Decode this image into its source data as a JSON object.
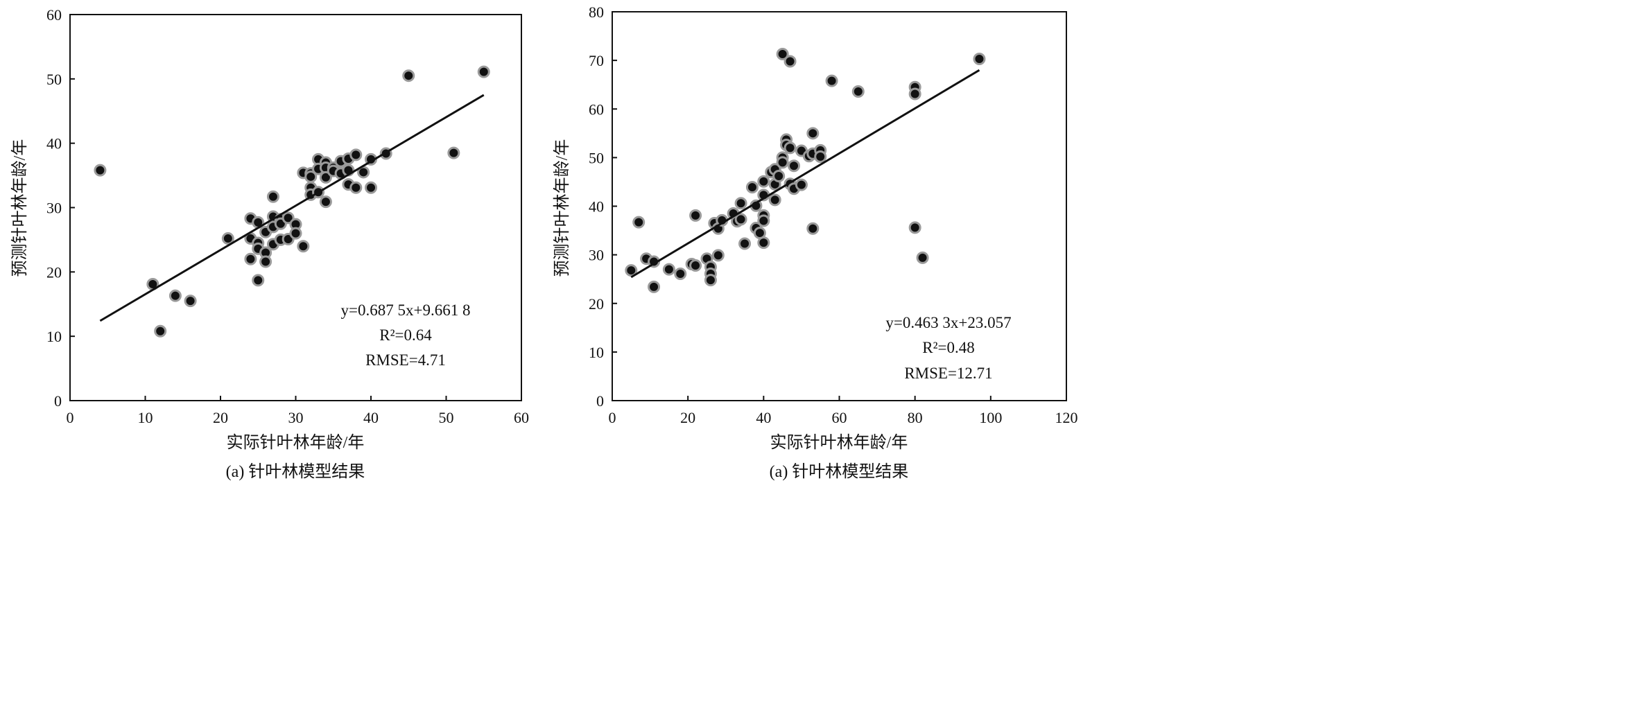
{
  "chart_data": [
    {
      "type": "scatter",
      "xlabel": "实际针叶林年龄/年",
      "ylabel": "预测针叶林年龄/年",
      "caption": "(a) 针叶林模型结果",
      "xlim": [
        0,
        60
      ],
      "ylim": [
        0,
        60
      ],
      "xticks": [
        "0",
        "10",
        "20",
        "30",
        "40",
        "50",
        "60"
      ],
      "yticks": [
        "0",
        "10",
        "20",
        "30",
        "40",
        "50",
        "60"
      ],
      "grid": false,
      "legend": "none",
      "annotation": {
        "equation": "y=0.687 5x+9.661 8",
        "r2": "R²=0.64",
        "rmse": "RMSE=4.71"
      },
      "fit_line": {
        "x": [
          4,
          55
        ],
        "y": [
          12.4,
          47.5
        ]
      },
      "points": [
        [
          4,
          35.8
        ],
        [
          11,
          18.1
        ],
        [
          12,
          10.8
        ],
        [
          14,
          16.3
        ],
        [
          16,
          15.5
        ],
        [
          21,
          25.2
        ],
        [
          24,
          28.3
        ],
        [
          24,
          25.2
        ],
        [
          24,
          22
        ],
        [
          25,
          27.7
        ],
        [
          25,
          24.5
        ],
        [
          25,
          23.6
        ],
        [
          25,
          18.7
        ],
        [
          26,
          26.2
        ],
        [
          26,
          23
        ],
        [
          26,
          21.6
        ],
        [
          27,
          31.7
        ],
        [
          27,
          28.6
        ],
        [
          27,
          27
        ],
        [
          27,
          24.3
        ],
        [
          28,
          28.2
        ],
        [
          28,
          27.5
        ],
        [
          28,
          25
        ],
        [
          29,
          28.4
        ],
        [
          29,
          25.1
        ],
        [
          30,
          27.4
        ],
        [
          30,
          26
        ],
        [
          31,
          35.4
        ],
        [
          31,
          24
        ],
        [
          32,
          35.3
        ],
        [
          32,
          34.8
        ],
        [
          32,
          33.1
        ],
        [
          32,
          32
        ],
        [
          33,
          37.5
        ],
        [
          33,
          36
        ],
        [
          33,
          32.4
        ],
        [
          34,
          37
        ],
        [
          34,
          36.2
        ],
        [
          34,
          34.7
        ],
        [
          34,
          30.9
        ],
        [
          35,
          36.2
        ],
        [
          35,
          35.7
        ],
        [
          36,
          37.2
        ],
        [
          36,
          35.3
        ],
        [
          37,
          37.6
        ],
        [
          37,
          35.8
        ],
        [
          37,
          33.6
        ],
        [
          38,
          38.2
        ],
        [
          38,
          33.1
        ],
        [
          39,
          35.5
        ],
        [
          40,
          37.5
        ],
        [
          40,
          33.1
        ],
        [
          42,
          38.4
        ],
        [
          45,
          50.5
        ],
        [
          51,
          38.5
        ],
        [
          55,
          51.1
        ]
      ]
    },
    {
      "type": "scatter",
      "xlabel": "实际针叶林年龄/年",
      "ylabel": "预测针叶林年龄/年",
      "caption": "(a) 针叶林模型结果",
      "xlim": [
        0,
        120
      ],
      "ylim": [
        0,
        80
      ],
      "xticks": [
        "0",
        "20",
        "40",
        "60",
        "80",
        "100",
        "120"
      ],
      "yticks": [
        "0",
        "10",
        "20",
        "30",
        "40",
        "50",
        "60",
        "70",
        "80"
      ],
      "grid": false,
      "legend": "none",
      "annotation": {
        "equation": "y=0.463 3x+23.057",
        "r2": "R²=0.48",
        "rmse": "RMSE=12.71"
      },
      "fit_line": {
        "x": [
          5,
          97
        ],
        "y": [
          25.4,
          68.0
        ]
      },
      "points": [
        [
          5,
          26.8
        ],
        [
          7,
          36.7
        ],
        [
          9,
          29.2
        ],
        [
          11,
          28.6
        ],
        [
          11,
          23.4
        ],
        [
          15,
          27
        ],
        [
          18,
          26.1
        ],
        [
          21,
          28.1
        ],
        [
          22,
          38.1
        ],
        [
          22,
          27.8
        ],
        [
          25,
          29.2
        ],
        [
          26,
          27.5
        ],
        [
          26,
          26.1
        ],
        [
          26,
          24.8
        ],
        [
          27,
          36.5
        ],
        [
          28,
          35.4
        ],
        [
          28,
          29.9
        ],
        [
          29,
          37.1
        ],
        [
          32,
          38.5
        ],
        [
          33,
          36.9
        ],
        [
          34,
          40.6
        ],
        [
          34,
          37.3
        ],
        [
          35,
          32.3
        ],
        [
          37,
          43.9
        ],
        [
          38,
          40.1
        ],
        [
          38,
          35.5
        ],
        [
          39,
          34.5
        ],
        [
          40,
          45.1
        ],
        [
          40,
          42.3
        ],
        [
          40,
          38.1
        ],
        [
          40,
          37
        ],
        [
          40,
          32.5
        ],
        [
          42,
          47
        ],
        [
          43,
          47.6
        ],
        [
          43,
          44.5
        ],
        [
          43,
          41.3
        ],
        [
          44,
          46.2
        ],
        [
          45,
          71.3
        ],
        [
          45,
          50
        ],
        [
          45,
          49
        ],
        [
          46,
          53.7
        ],
        [
          46,
          52.6
        ],
        [
          47,
          69.8
        ],
        [
          47,
          52
        ],
        [
          47,
          44.6
        ],
        [
          48,
          48.3
        ],
        [
          48,
          43.6
        ],
        [
          50,
          51.4
        ],
        [
          50,
          44.4
        ],
        [
          52,
          50.3
        ],
        [
          53,
          55
        ],
        [
          53,
          50.8
        ],
        [
          53,
          35.4
        ],
        [
          55,
          51.5
        ],
        [
          55,
          50.2
        ],
        [
          58,
          65.8
        ],
        [
          65,
          63.6
        ],
        [
          80,
          64.5
        ],
        [
          80,
          63.1
        ],
        [
          80,
          35.6
        ],
        [
          82,
          29.4
        ],
        [
          97,
          70.3
        ]
      ]
    }
  ]
}
